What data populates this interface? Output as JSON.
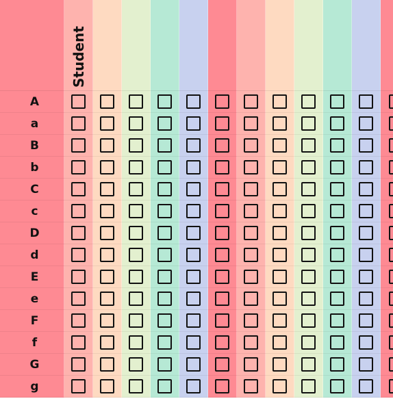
{
  "header": {
    "student_label": "Student"
  },
  "rows": [
    "A",
    "a",
    "B",
    "b",
    "C",
    "c",
    "D",
    "d",
    "E",
    "e",
    "F",
    "f",
    "G",
    "g"
  ],
  "colors": {
    "label_column": "#FE8A93",
    "header_row": [
      "#FEB3AE",
      "#FEDAC1",
      "#E3F0CF",
      "#B6E9D5",
      "#C8D1EF",
      "#FE8A93",
      "#FEB3AE",
      "#FEDAC1",
      "#E3F0CF",
      "#B6E9D5",
      "#C8D1EF",
      "#FE8A93"
    ],
    "body_columns": [
      "#FEB3AE",
      "#FEDAC1",
      "#E3F0CF",
      "#B6E9D5",
      "#C8D1EF",
      "#FE8A93",
      "#FEB3AE",
      "#FEDAC1",
      "#E3F0CF",
      "#B6E9D5",
      "#C8D1EF",
      "#FE8A93"
    ],
    "checkbox_border": "#111111"
  },
  "checkbox_columns": 12,
  "checked": []
}
